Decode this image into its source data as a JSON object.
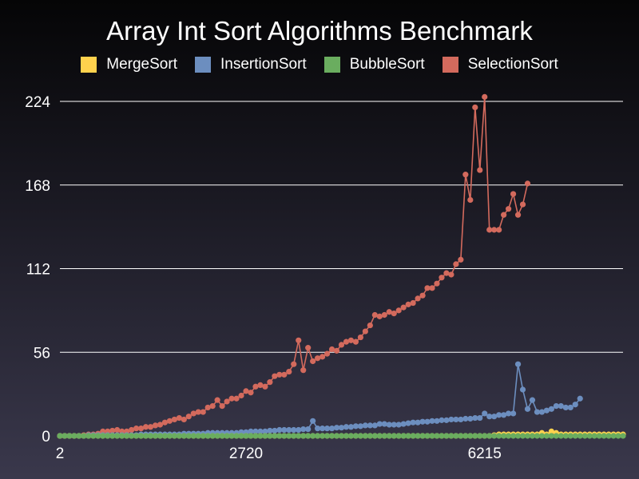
{
  "chart_data": {
    "type": "line",
    "title": "Array Int Sort Algorithms Benchmark",
    "xlabel": "",
    "ylabel": "",
    "ylim": [
      0,
      230
    ],
    "y_ticks": [
      "0",
      "56",
      "112",
      "168",
      "224"
    ],
    "y_tick_values": [
      0,
      56,
      112,
      168,
      224
    ],
    "x_tick_labels": [
      "2",
      "2720",
      "6215"
    ],
    "x_tick_indices": [
      0,
      39,
      89
    ],
    "grid": true,
    "legend_position": "top",
    "series": [
      {
        "name": "MergeSort",
        "color": "#ffd24d",
        "values": [
          0,
          0,
          0,
          0,
          0,
          0,
          0,
          0,
          0,
          0,
          0,
          0,
          0,
          0,
          0,
          0,
          0,
          0,
          0,
          0,
          0,
          0,
          0,
          0,
          0,
          0,
          0,
          0,
          0,
          0,
          0,
          0,
          0,
          0,
          0,
          0,
          0,
          0,
          0,
          0,
          0,
          0,
          0,
          0,
          0,
          0,
          0,
          0,
          0,
          0,
          0,
          0,
          0,
          0,
          0,
          0,
          0,
          0,
          0,
          0,
          0,
          0,
          0,
          0,
          0,
          0,
          0,
          0,
          0,
          0,
          0,
          0,
          0,
          0,
          0,
          0,
          0,
          0,
          0,
          0,
          0,
          0,
          0,
          0,
          0,
          0,
          0,
          0,
          0,
          0,
          0,
          0.5,
          1,
          1,
          1,
          1,
          1,
          1,
          1,
          1,
          1,
          2,
          1,
          3,
          2,
          1,
          1,
          1,
          1,
          1,
          1,
          1,
          1,
          1,
          1,
          1,
          1,
          1,
          1
        ]
      },
      {
        "name": "InsertionSort",
        "color": "#6c8ebf",
        "values": [
          0,
          0,
          0,
          0,
          0,
          0,
          0.5,
          0.5,
          0.5,
          0.5,
          0.5,
          0.5,
          0.5,
          0.5,
          0.5,
          0.5,
          0.5,
          1,
          1,
          1,
          1,
          1,
          1,
          1,
          1,
          1,
          1.5,
          1.5,
          1.5,
          1.5,
          1.5,
          2,
          2,
          2,
          2,
          2,
          2,
          2,
          2.5,
          2.5,
          3,
          3,
          3,
          3,
          3.5,
          3.5,
          4,
          4,
          4,
          4,
          4,
          4.5,
          4.5,
          10,
          5,
          5,
          5,
          5,
          5.5,
          5.5,
          6,
          6,
          6.5,
          6.5,
          7,
          7,
          7,
          8,
          8,
          7.5,
          7.5,
          7.5,
          8,
          8.5,
          9,
          9,
          9.5,
          9.5,
          10,
          10,
          10.5,
          10.5,
          11,
          11,
          11,
          11.5,
          11.5,
          12,
          12,
          15,
          13,
          13,
          14,
          14,
          15,
          15,
          48,
          31,
          18,
          24,
          16,
          16,
          17,
          18,
          20,
          20,
          19,
          19,
          21,
          25
        ]
      },
      {
        "name": "BubbleSort",
        "color": "#6aad5f",
        "values": [
          0,
          0,
          0,
          0,
          0,
          0,
          0,
          0,
          0,
          0,
          0,
          0,
          0,
          0,
          0,
          0,
          0,
          0,
          0,
          0,
          0,
          0,
          0,
          0,
          0,
          0,
          0,
          0,
          0,
          0,
          0,
          0,
          0,
          0,
          0,
          0,
          0,
          0,
          0,
          0,
          0,
          0,
          0,
          0,
          0,
          0,
          0,
          0,
          0,
          0,
          0,
          0,
          0,
          0,
          0,
          0,
          0,
          0,
          0,
          0,
          0,
          0,
          0,
          0,
          0,
          0,
          0,
          0,
          0,
          0,
          0,
          0,
          0,
          0,
          0,
          0,
          0,
          0,
          0,
          0,
          0,
          0,
          0,
          0,
          0,
          0,
          0,
          0,
          0,
          0,
          0,
          0,
          0,
          0,
          0,
          0,
          0,
          0,
          0,
          0,
          0,
          0,
          0,
          0,
          0,
          0,
          0,
          0,
          0,
          0,
          0,
          0,
          0,
          0,
          0,
          0,
          0,
          0,
          0
        ]
      },
      {
        "name": "SelectionSort",
        "color": "#d36a5d",
        "values": [
          0,
          0,
          0,
          0,
          0,
          0.5,
          1,
          1,
          1.5,
          3,
          3,
          3.5,
          4,
          3,
          3,
          4,
          5,
          5,
          6,
          6,
          7,
          7.5,
          9,
          10,
          11,
          12,
          11,
          13,
          15,
          16,
          16,
          19,
          20,
          24,
          20,
          23,
          25,
          25,
          27,
          30,
          29,
          33,
          34,
          33,
          36,
          40,
          41,
          41,
          43,
          48,
          64,
          44,
          59,
          50,
          52,
          53,
          55,
          58,
          57,
          61,
          63,
          64,
          63,
          66,
          70,
          74,
          81,
          80,
          81,
          83,
          82,
          84,
          86,
          88,
          89,
          92,
          94,
          99,
          99,
          102,
          106,
          109,
          108,
          115,
          118,
          175,
          158,
          220,
          178,
          227,
          138,
          138,
          138,
          148,
          152,
          162,
          148,
          155,
          169
        ]
      }
    ]
  }
}
